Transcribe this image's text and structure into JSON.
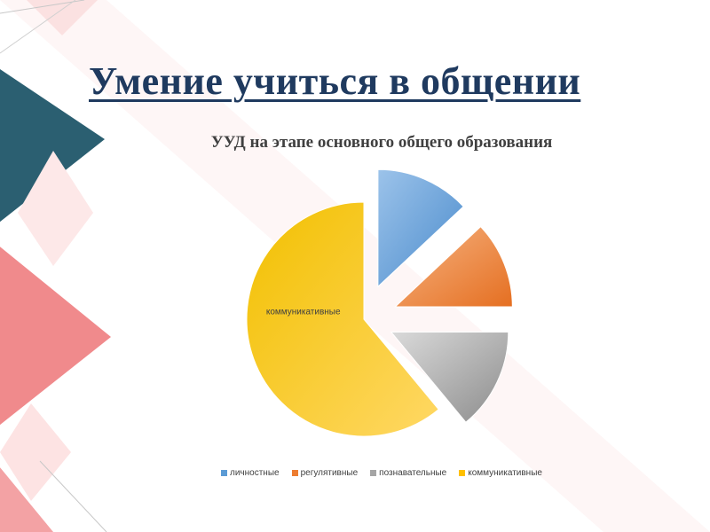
{
  "slide": {
    "title": "Умение учиться в общении"
  },
  "colors": {
    "teal": "#2b5f71",
    "coral": "#f08a8c",
    "pale_pink": "#fbe3e3",
    "title": "#1f3a5f"
  },
  "chart_data": {
    "type": "pie",
    "title": "УУД на этапе основного общего образования",
    "exploded": true,
    "start_angle_deg": 0,
    "slices": [
      {
        "name": "личностные",
        "value": 13,
        "color": "#5b9bd5"
      },
      {
        "name": "регулятивные",
        "value": 12,
        "color": "#ed7d31"
      },
      {
        "name": "познавательные",
        "value": 14,
        "color": "#a5a5a5"
      },
      {
        "name": "коммуникативные",
        "value": 61,
        "color": "#ffc000"
      }
    ],
    "data_labels": [
      {
        "slice": "коммуникативные",
        "text": "коммуникативные"
      }
    ],
    "legend_position": "bottom"
  }
}
